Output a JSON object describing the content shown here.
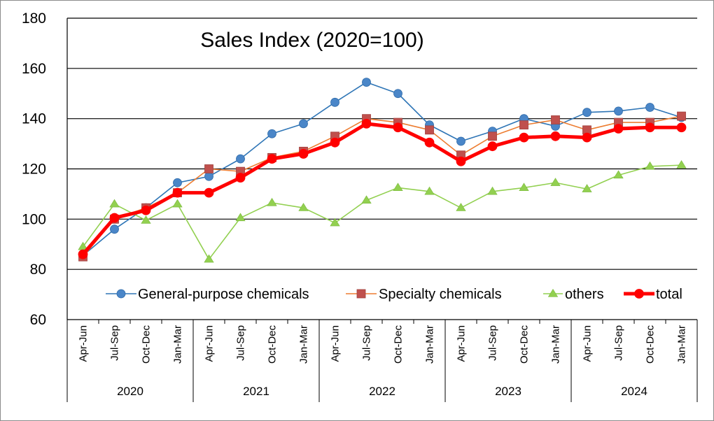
{
  "chart_data": {
    "type": "line",
    "title": "Sales Index (2020=100)",
    "ylim": [
      60,
      180
    ],
    "yticks": [
      60,
      80,
      100,
      120,
      140,
      160,
      180
    ],
    "grid": "horizontal",
    "legend_position": "bottom-inside",
    "categories": [
      "Apr-Jun",
      "Jul-Sep",
      "Oct-Dec",
      "Jan-Mar",
      "Apr-Jun",
      "Jul-Sep",
      "Oct-Dec",
      "Jan-Mar",
      "Apr-Jun",
      "Jul-Sep",
      "Oct-Dec",
      "Jan-Mar",
      "Apr-Jun",
      "Jul-Sep",
      "Oct-Dec",
      "Jan-Mar",
      "Apr-Jun",
      "Jul-Sep",
      "Oct-Dec",
      "Jan-Mar"
    ],
    "year_groups": [
      {
        "label": "2020",
        "span": 4
      },
      {
        "label": "2021",
        "span": 4
      },
      {
        "label": "2022",
        "span": 4
      },
      {
        "label": "2023",
        "span": 4
      },
      {
        "label": "2024",
        "span": 4
      }
    ],
    "series": [
      {
        "name": "General-purpose chemicals",
        "color": "#2e75b6",
        "marker": "circle",
        "marker_color": "#4a86c8",
        "line_width": 1.6,
        "values": [
          85.5,
          96,
          104.5,
          114.5,
          117,
          124,
          134,
          138,
          146.5,
          154.5,
          150,
          137.5,
          131,
          135,
          140,
          137,
          142.5,
          143,
          144.5,
          140.5
        ]
      },
      {
        "name": "Specialty chemicals",
        "color": "#ed7d31",
        "marker": "square",
        "marker_color": "#c0504d",
        "line_width": 1.6,
        "values": [
          85,
          100,
          104.5,
          110.5,
          120,
          119,
          124.5,
          127,
          133,
          140,
          138.5,
          135.5,
          125.5,
          133,
          137.5,
          139.5,
          135.5,
          138.5,
          138.5,
          141
        ]
      },
      {
        "name": "others",
        "color": "#92d050",
        "marker": "triangle",
        "marker_color": "#92d050",
        "line_width": 1.6,
        "values": [
          89,
          106,
          99.5,
          106,
          84,
          100.5,
          106.5,
          104.5,
          98.5,
          107.5,
          112.5,
          111,
          104.5,
          111,
          112.5,
          114.5,
          112,
          117.5,
          121,
          121.5
        ]
      },
      {
        "name": "total",
        "color": "#ff0000",
        "marker": "circle",
        "marker_color": "#ff0000",
        "line_width": 5,
        "values": [
          86,
          100.5,
          103.5,
          110.5,
          110.5,
          116.5,
          124,
          126,
          130.5,
          138,
          136.5,
          130.5,
          123,
          129,
          132.5,
          133,
          132.5,
          136,
          136.5,
          136.5
        ]
      }
    ]
  }
}
